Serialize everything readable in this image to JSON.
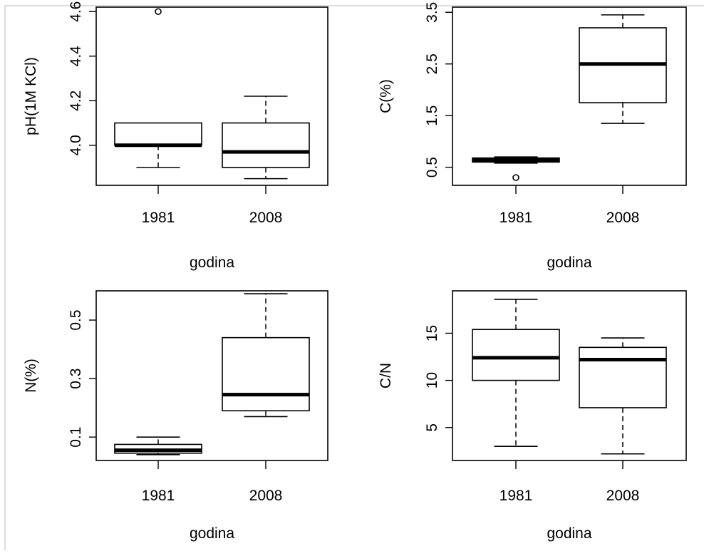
{
  "chart_data": [
    {
      "type": "box",
      "xlabel": "godina",
      "ylabel": "pH(1M KCl)",
      "categories": [
        "1981",
        "2008"
      ],
      "yticks": [
        "4.0",
        "4.2",
        "4.4",
        "4.6"
      ],
      "ylim": [
        3.82,
        4.62
      ],
      "boxes": [
        {
          "category": "1981",
          "min": 3.9,
          "q1": 4.0,
          "median": 4.0,
          "q3": 4.1,
          "max": 4.1,
          "outliers": [
            4.6
          ]
        },
        {
          "category": "2008",
          "min": 3.85,
          "q1": 3.9,
          "median": 3.97,
          "q3": 4.1,
          "max": 4.22,
          "outliers": []
        }
      ]
    },
    {
      "type": "box",
      "xlabel": "godina",
      "ylabel": "C(%)",
      "categories": [
        "1981",
        "2008"
      ],
      "yticks": [
        "0.5",
        "1.5",
        "2.5",
        "3.5"
      ],
      "ylim": [
        0.15,
        3.6
      ],
      "boxes": [
        {
          "category": "1981",
          "min": 0.58,
          "q1": 0.6,
          "median": 0.64,
          "q3": 0.68,
          "max": 0.7,
          "outliers": [
            0.3
          ]
        },
        {
          "category": "2008",
          "min": 1.35,
          "q1": 1.75,
          "median": 2.5,
          "q3": 3.2,
          "max": 3.45,
          "outliers": []
        }
      ]
    },
    {
      "type": "box",
      "xlabel": "godina",
      "ylabel": "N(%)",
      "categories": [
        "1981",
        "2008"
      ],
      "yticks": [
        "0.1",
        "0.3",
        "0.5"
      ],
      "ylim": [
        0.02,
        0.6
      ],
      "boxes": [
        {
          "category": "1981",
          "min": 0.04,
          "q1": 0.045,
          "median": 0.055,
          "q3": 0.075,
          "max": 0.1,
          "outliers": []
        },
        {
          "category": "2008",
          "min": 0.17,
          "q1": 0.19,
          "median": 0.245,
          "q3": 0.44,
          "max": 0.59,
          "outliers": []
        }
      ]
    },
    {
      "type": "box",
      "xlabel": "godina",
      "ylabel": "C/N",
      "categories": [
        "1981",
        "2008"
      ],
      "yticks": [
        "5",
        "10",
        "15"
      ],
      "ylim": [
        1.5,
        19.5
      ],
      "boxes": [
        {
          "category": "1981",
          "min": 3.0,
          "q1": 10.0,
          "median": 12.4,
          "q3": 15.4,
          "max": 18.6,
          "outliers": []
        },
        {
          "category": "2008",
          "min": 2.2,
          "q1": 7.1,
          "median": 12.2,
          "q3": 13.5,
          "max": 14.5,
          "outliers": []
        }
      ]
    }
  ]
}
